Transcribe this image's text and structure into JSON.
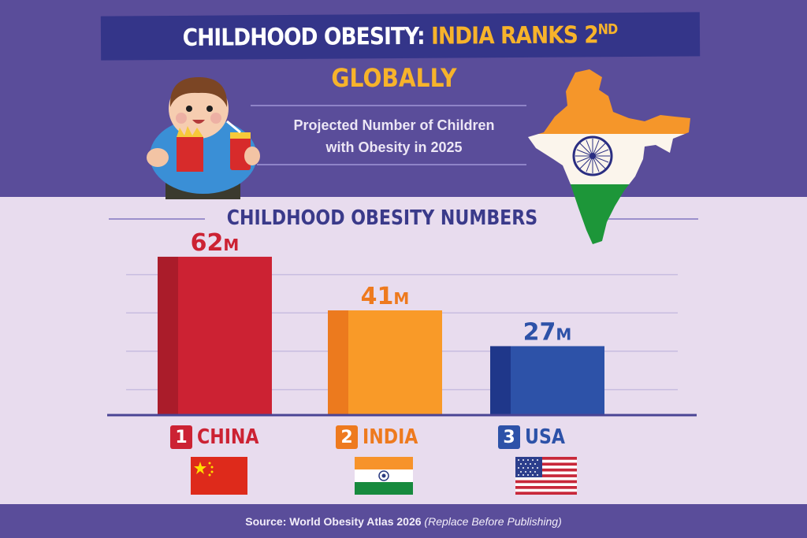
{
  "header": {
    "title_part1": "CHILDHOOD OBESITY: ",
    "title_part2": "INDIA RANKS 2",
    "title_sup": "ND",
    "title_line2": "GLOBALLY",
    "subtitle_line1": "Projected Number of Children",
    "subtitle_line2": "with Obesity in 2025"
  },
  "section_title": "CHILDHOOD OBESITY NUMBERS",
  "footer": {
    "source_label": "Source: World Obesity Atlas 2026",
    "note": "(Replace Before Publishing)"
  },
  "colors": {
    "china": "#cc2233",
    "china_dark": "#aa1c2a",
    "india": "#f99a28",
    "india_dark": "#ec7a1e",
    "usa": "#2d52a8",
    "usa_dark": "#1f378a",
    "india_label": "#ee7a1e"
  },
  "chart_data": {
    "type": "bar",
    "title": "CHILDHOOD OBESITY NUMBERS",
    "categories": [
      "CHINA",
      "INDIA",
      "USA"
    ],
    "ranks": [
      "1",
      "2",
      "3"
    ],
    "values": [
      62,
      41,
      27
    ],
    "value_labels": [
      "62",
      "41",
      "27"
    ],
    "unit": "M",
    "ylim": [
      0,
      70
    ],
    "grid": true,
    "xlabel": "",
    "ylabel": ""
  }
}
